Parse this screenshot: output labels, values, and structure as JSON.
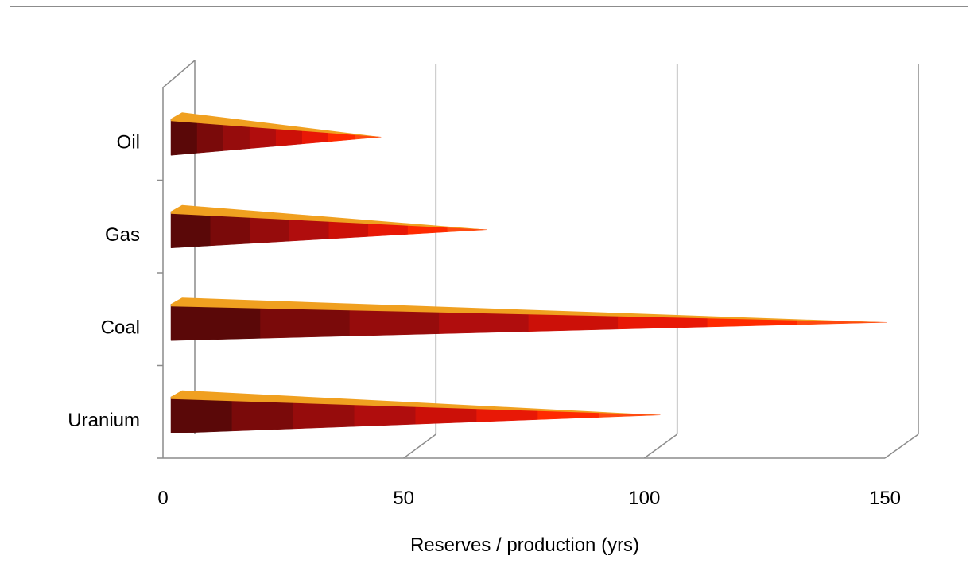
{
  "chart_data": {
    "type": "bar",
    "orientation": "horizontal",
    "style": "3d-cone",
    "categories": [
      "Oil",
      "Gas",
      "Coal",
      "Uranium"
    ],
    "values": [
      43,
      65,
      148,
      101
    ],
    "xlabel": "Reserves / production (yrs)",
    "ylabel": "",
    "xlim": [
      0,
      150
    ],
    "xticks": [
      "0",
      "50",
      "100",
      "150"
    ],
    "grid": true,
    "legend": "none",
    "colors": {
      "cone_base": "#5a0808",
      "cone_mid": "#b50d0d",
      "cone_tip": "#ff2a00",
      "cone_top_edge": "#f0a020",
      "gridline": "#8c8c8c"
    }
  }
}
